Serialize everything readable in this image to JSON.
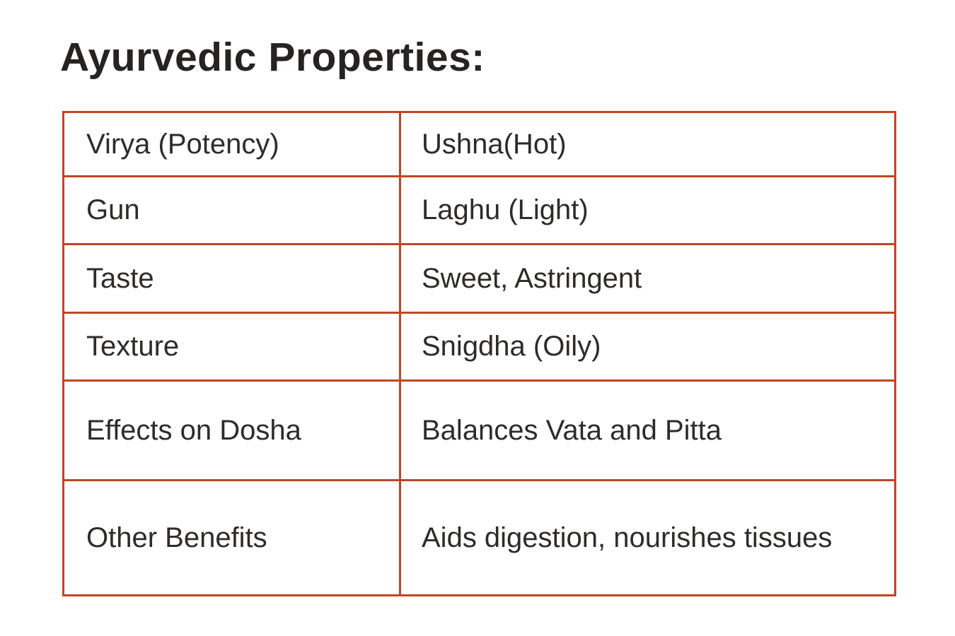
{
  "title": "Ayurvedic Properties:",
  "title_color": "#262322",
  "page_background": "#ffffff",
  "table": {
    "border_color": "#c14524",
    "text_color": "#2e2b29",
    "rows": [
      {
        "property": "Virya (Potency)",
        "value": "Ushna(Hot)"
      },
      {
        "property": "Gun",
        "value": "Laghu (Light)"
      },
      {
        "property": "Taste",
        "value": "Sweet, Astringent"
      },
      {
        "property": "Texture",
        "value": "Snigdha (Oily)"
      },
      {
        "property": "Effects on Dosha",
        "value": "Balances Vata and Pitta"
      },
      {
        "property": "Other Benefits",
        "value": "Aids digestion, nourishes tissues"
      }
    ]
  }
}
